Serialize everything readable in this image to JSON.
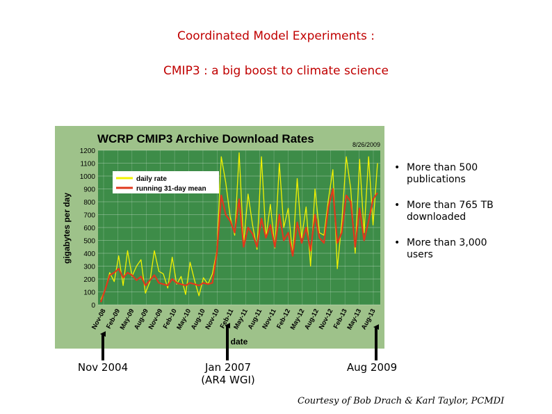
{
  "slide": {
    "title": "Coordinated Model Experiments :",
    "subtitle": "CMIP3 : a big boost to climate science",
    "credit": "Courtesy of Bob Drach & Karl Taylor, PCMDI"
  },
  "bullets": [
    {
      "line1": "More than 500",
      "line2": "publications"
    },
    {
      "line1": "More than 765 TB",
      "line2": "downloaded"
    },
    {
      "line1": "More than 3,000",
      "line2": "users"
    }
  ],
  "markers": [
    {
      "line1": "Nov 2004",
      "line2": "",
      "date_index": 0
    },
    {
      "line1": "Jan 2007",
      "line2": "(AR4 WGI)",
      "date_index": 26
    },
    {
      "line1": "Aug 2009",
      "line2": "",
      "date_index": 57
    }
  ],
  "colors": {
    "title": "#c00000",
    "chart_frame": "#9ec28a",
    "plot_bg": "#3d8c48",
    "daily_rate": "#f2f200",
    "running_mean": "#e0381c",
    "arrow": "#000000"
  },
  "chart_data": {
    "type": "line",
    "title": "WCRP CMIP3 Archive Download Rates",
    "date_stamp": "8/26/2009",
    "xlabel": "date",
    "ylabel": "gigabytes per day",
    "ylim": [
      0,
      1200
    ],
    "yticks": [
      0,
      100,
      200,
      300,
      400,
      500,
      600,
      700,
      800,
      900,
      1000,
      1100,
      1200
    ],
    "xticks": [
      "Nov-08",
      "Feb-09",
      "May-09",
      "Aug-09",
      "Nov-09",
      "Feb-10",
      "May-10",
      "Aug-10",
      "Nov-10",
      "Feb-11",
      "May-11",
      "Aug-11",
      "Nov-11",
      "Feb-12",
      "May-12",
      "Aug-12",
      "Nov-12",
      "Feb-13",
      "May-13",
      "Aug-13"
    ],
    "grid": true,
    "legend_position": "top-left",
    "series": [
      {
        "name": "daily rate",
        "color": "#f2f200",
        "values": [
          40,
          120,
          250,
          180,
          380,
          150,
          420,
          220,
          300,
          350,
          90,
          180,
          420,
          260,
          240,
          130,
          370,
          160,
          220,
          80,
          330,
          190,
          70,
          210,
          160,
          240,
          420,
          1150,
          950,
          680,
          540,
          1180,
          480,
          860,
          620,
          430,
          1150,
          520,
          780,
          440,
          1100,
          600,
          750,
          380,
          980,
          520,
          760,
          300,
          900,
          560,
          540,
          820,
          1050,
          280,
          640,
          1150,
          900,
          400,
          1130,
          560,
          1150,
          620,
          1100
        ]
      },
      {
        "name": "running 31-day mean",
        "color": "#e0381c",
        "values": [
          20,
          120,
          230,
          250,
          280,
          210,
          250,
          230,
          190,
          220,
          150,
          190,
          230,
          170,
          160,
          150,
          200,
          170,
          160,
          150,
          170,
          160,
          150,
          170,
          160,
          170,
          400,
          850,
          700,
          650,
          560,
          820,
          450,
          600,
          550,
          450,
          670,
          520,
          620,
          450,
          700,
          500,
          560,
          380,
          640,
          480,
          600,
          420,
          700,
          520,
          480,
          760,
          900,
          480,
          560,
          850,
          800,
          450,
          750,
          500,
          650,
          820,
          870
        ]
      }
    ]
  }
}
